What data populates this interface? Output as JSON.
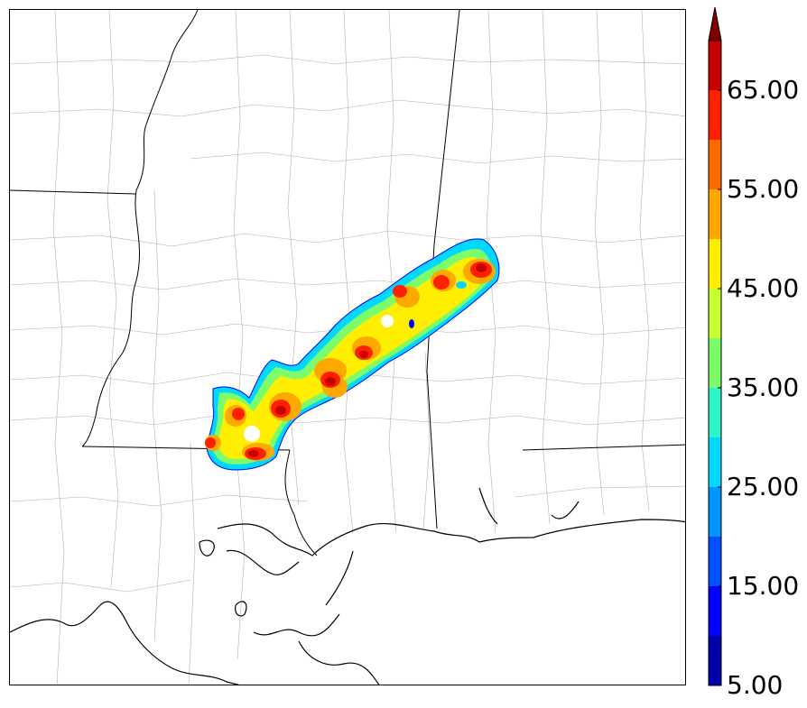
{
  "colorbar": {
    "ticks": [
      {
        "label": "65.00",
        "value": 65
      },
      {
        "label": "55.00",
        "value": 55
      },
      {
        "label": "45.00",
        "value": 45
      },
      {
        "label": "35.00",
        "value": 35
      },
      {
        "label": "25.00",
        "value": 25
      },
      {
        "label": "15.00",
        "value": 15
      },
      {
        "label": "5.00",
        "value": 5
      }
    ],
    "min": 5,
    "max": 70,
    "extend": "max",
    "levels": [
      {
        "from": 5,
        "to": 10,
        "color": "#0000a8"
      },
      {
        "from": 10,
        "to": 15,
        "color": "#0000ff"
      },
      {
        "from": 15,
        "to": 20,
        "color": "#0050ff"
      },
      {
        "from": 20,
        "to": 25,
        "color": "#0096ff"
      },
      {
        "from": 25,
        "to": 30,
        "color": "#00d8ff"
      },
      {
        "from": 30,
        "to": 35,
        "color": "#2ef5c8"
      },
      {
        "from": 35,
        "to": 40,
        "color": "#7cfc6a"
      },
      {
        "from": 40,
        "to": 45,
        "color": "#c8ff32"
      },
      {
        "from": 45,
        "to": 50,
        "color": "#ffee00"
      },
      {
        "from": 50,
        "to": 55,
        "color": "#ffa800"
      },
      {
        "from": 55,
        "to": 60,
        "color": "#ff6a00"
      },
      {
        "from": 60,
        "to": 65,
        "color": "#ff2000"
      },
      {
        "from": 65,
        "to": 70,
        "color": "#c80000"
      }
    ],
    "extend_color": "#800000"
  }
}
